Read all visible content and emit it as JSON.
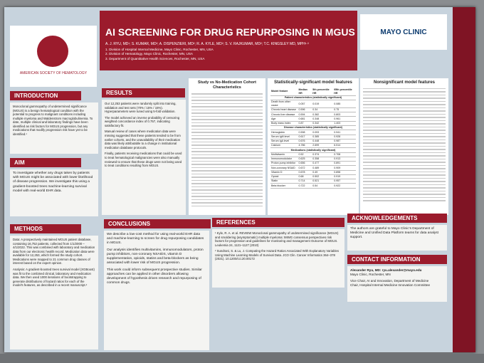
{
  "header": {
    "title": "AI SCREENING FOR DRUG REPURPOSING IN MGUS",
    "authors": "A. J. RYU, MD¹; S. KUMAR, MD²; A. DISPENZIERI, MD²; R. A. KYLE, MD²; S. V. RAJKUMAR, MD²; T.C. KINGSLEY MD, MPH¹·³",
    "affiliations": [
      "1. Division of Hospital Internal Medicine, Mayo Clinic, Rochester, MN, USA",
      "2. Division of Hematology, Mayo Clinic, Rochester, MN, USA",
      "3. Department of Quantitative Health Sciences, Rochester, MN, USA"
    ],
    "left_logo": "AMERICAN SOCIETY OF HEMATOLOGY",
    "right_logo": "MAYO CLINIC"
  },
  "introduction": {
    "heading": "INTRODUCTION",
    "text": "Monoclonal gammopathy of undetermined significance (MGUS) is a benign hematological condition with the potential to progress to malignant conditions including multiple myeloma and Waldenstrom macroglobulinemia. To date, multiple clinical and laboratory findings have been identified as risk factors for MGUS progression, but any medications that modify progression risk have yet to be identified.¹"
  },
  "aim": {
    "heading": "AIM",
    "text": "To investigate whether any drugs taken by patients with MGUS might be associated with lower likelihood of disease progression. We investigate this using a gradient-boosted trees machine-learning survival model with real-world EHR data."
  },
  "methods": {
    "heading": "METHODS",
    "paragraphs": [
      "Data: A prospectively maintained MGUS patient database, containing 16,752 patients, collected from 1/1/2000 – 4/1/2022. This was combined with laboratory and medication data from our electronic health record. Medication data were available for 12,253, which formed the study cohort. Medications were mapped to 21 common drug classes of interest based on the expert opinion.",
      "Analysis: A gradient-boosted trees survival model (XGBoost) was fit to the combined clinical, laboratory and medication data. We then used 1000 iterations of bootstrapping to generate distributions of hazard ratios for each of the model's features, as described in a recent manuscript.²"
    ]
  },
  "results": {
    "heading": "RESULTS",
    "paragraphs": [
      "Our 12,253 patients were randomly split into training, validation and test sets (70% / 15% / 15%). Hyperparameters were tuned using 5-fold validation.",
      "The model achieved an inverse probability of censoring weighted concordance index of 0.757, indicating satisfactory fit.",
      "Manual review of cases where medication data were missing suggested that these patients tended to be from earlier cohorts, and the unavailability of their medication data was likely attributable to a change in institutional medication database protocols.",
      "Finally, patients receiving medications that could be used to treat hematological malignancies were also manually reviewed to ensure that these drugs were not being used to treat conditions resulting from MGUS."
    ]
  },
  "study_table": {
    "title": "Study vs No-Medication Cohort Characteristics"
  },
  "sig_table": {
    "title": "Statistically-significant model features",
    "columns": [
      "Model feature",
      "Median HR",
      "5th percentile HR",
      "95th percentile HR"
    ],
    "rows": [
      [
        "Patient characteristics (statistically significant)"
      ],
      [
        "Death from other cause",
        "0.057",
        "0.019",
        "0.085"
      ],
      [
        "Chronic heart disease",
        "0.596",
        "0.34",
        "0.75"
      ],
      [
        "Chronic liver disease",
        "0.594",
        "0.382",
        "0.803"
      ],
      [
        "Age",
        "0.681",
        "0.348",
        "0.961"
      ],
      [
        "Body mass index",
        "0.87",
        "0.342",
        "1.403"
      ],
      [
        "Disease characteristics (statistically significant)"
      ],
      [
        "Hemoglobin",
        "0.598",
        "0.093",
        "0.941"
      ],
      [
        "Serum IgM level",
        "0.617",
        "0.385",
        "0.928"
      ],
      [
        "Serum IgA level",
        "0.676",
        "0.448",
        "0.987"
      ],
      [
        "Calcium",
        "4.786",
        "2.699",
        "6.514"
      ],
      [
        "Medications (statistically significant)"
      ],
      [
        "Multivitamin",
        "0.52",
        "0.374",
        "0.708"
      ],
      [
        "Immunomodulator",
        "0.625",
        "0.358",
        "0.913"
      ],
      [
        "Proton pump inhibitor",
        "0.656",
        "0.477",
        "0.891"
      ],
      [
        "Non-coronary NSAID",
        "0.672",
        "0.489",
        "0.909"
      ],
      [
        "Vitamin D",
        "0.678",
        "0.49",
        "0.898"
      ],
      [
        "Opioid",
        "0.68",
        "0.502",
        "0.919"
      ],
      [
        "Statin",
        "0.714",
        "0.521",
        "0.957"
      ],
      [
        "Beta blocker",
        "0.722",
        "0.54",
        "0.922"
      ]
    ]
  },
  "nonsig_table": {
    "title": "Nonsignificant model features"
  },
  "conclusions": {
    "heading": "CONCLUSIONS",
    "paragraphs": [
      "We describe a low-cost method for using real-world EHR data and machine-learning to screen for drug repurposing candidates in MGUS.",
      "Our analysis identifies multivitamins, immunomodulators, proton pump inhibitors, non-coronary NSAIDS, vitamin D supplementation, opioids, statins and beta-blockers as being associated with lower risk of MGUS progression.",
      "This work could inform subsequent prospective studies. Similar approaches can be applied in other disorders allowing development of hypothesis driven research and repurposing of common drugs."
    ]
  },
  "references": {
    "heading": "REFERENCES",
    "items": [
      "¹ Kyle, R. A. et al. REVIEW Monoclonal gammopathy of undetermined significance (MGUS) and smoldering (asymptomatic) multiple myeloma: IMWG consensus perspectives risk factors for progression and guidelines for monitoring and management Outcome of MGUS. Leukemia 24, 1121–1127 (2010)",
      "² Sundrani, S. & Lu, J. Computing the Hazard Ratios Associated With Explanatory Variables Using Machine Learning Models of Survival Data. JCO Clin. Cancer Informatics 364–378 (2021). 10.1200/cci.20.00172"
    ]
  },
  "acknowledgements": {
    "heading": "ACKNOWLEDGEMENTS",
    "text": "The authors are grateful to Mayo Clinic's Department of Medicine and Unified Data Platform teams for data analyst support."
  },
  "contact": {
    "heading": "CONTACT INFORMATION",
    "lines": [
      "Alexander Ryu, MD: ryu.alexander@mayo.edu",
      "Mayo Clinic, Rochester, MN",
      "Vice Chair, AI and Innovation, Department of Medicine",
      "Chair, Hospital Internal Medicine Innovation Committee"
    ]
  }
}
